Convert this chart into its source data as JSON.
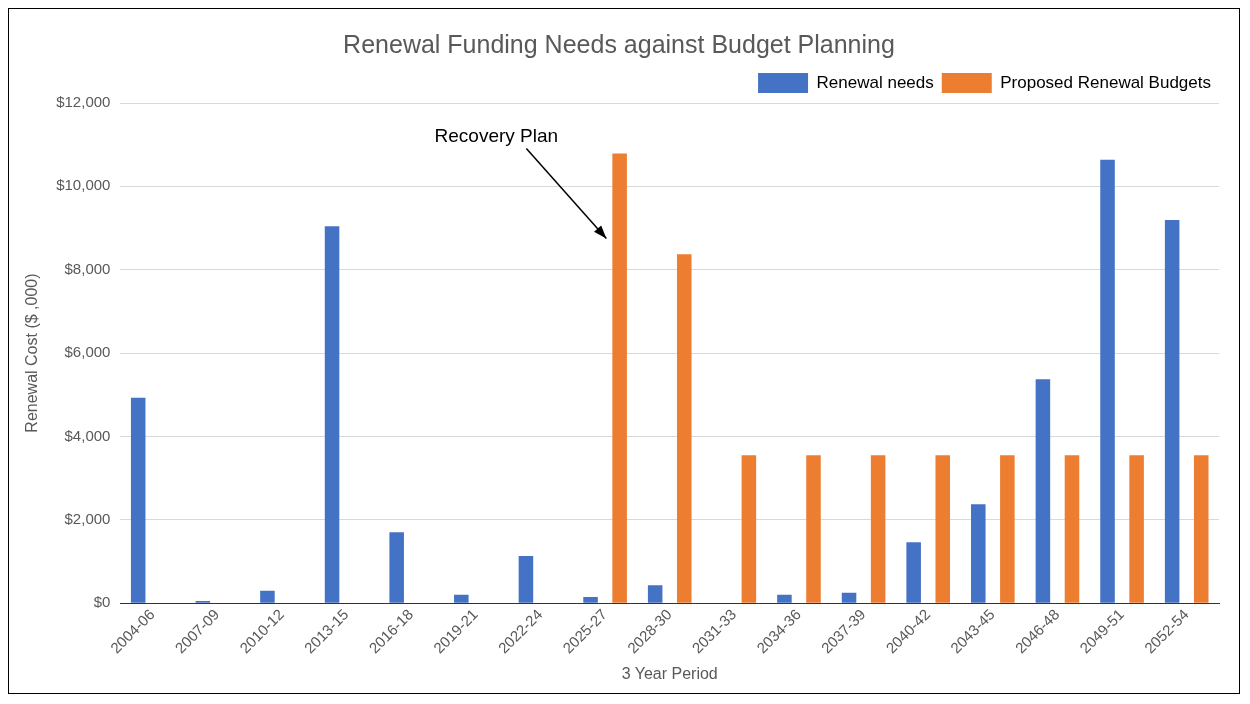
{
  "chart_data": {
    "type": "bar",
    "title": "Renewal Funding Needs against Budget Planning",
    "xlabel": "3 Year Period",
    "ylabel": "Renewal Cost ($ ,000)",
    "categories": [
      "2004-06",
      "2007-09",
      "2010-12",
      "2013-15",
      "2016-18",
      "2019-21",
      "2022-24",
      "2025-27",
      "2028-30",
      "2031-33",
      "2034-36",
      "2037-39",
      "2040-42",
      "2043-45",
      "2046-48",
      "2049-51",
      "2052-54"
    ],
    "series": [
      {
        "name": "Renewal needs",
        "color": "#4472c4",
        "values": [
          4930,
          50,
          300,
          9040,
          1700,
          200,
          1130,
          150,
          430,
          null,
          200,
          250,
          1460,
          2370,
          5370,
          10640,
          9190
        ]
      },
      {
        "name": "Proposed Renewal Budgets",
        "color": "#ed7d31",
        "values": [
          null,
          null,
          null,
          null,
          null,
          null,
          null,
          10790,
          8370,
          3550,
          3550,
          3550,
          3550,
          3550,
          3550,
          3550,
          3550
        ]
      }
    ],
    "ylim": [
      0,
      12000
    ],
    "yticks": [
      {
        "value": 0,
        "label": "$0"
      },
      {
        "value": 2000,
        "label": "$2,000"
      },
      {
        "value": 4000,
        "label": "$4,000"
      },
      {
        "value": 6000,
        "label": "$6,000"
      },
      {
        "value": 8000,
        "label": "$8,000"
      },
      {
        "value": 10000,
        "label": "$10,000"
      },
      {
        "value": 12000,
        "label": "$12,000"
      }
    ],
    "grid": "y",
    "legend": "top right",
    "annotations": [
      "Recovery Plan"
    ]
  }
}
